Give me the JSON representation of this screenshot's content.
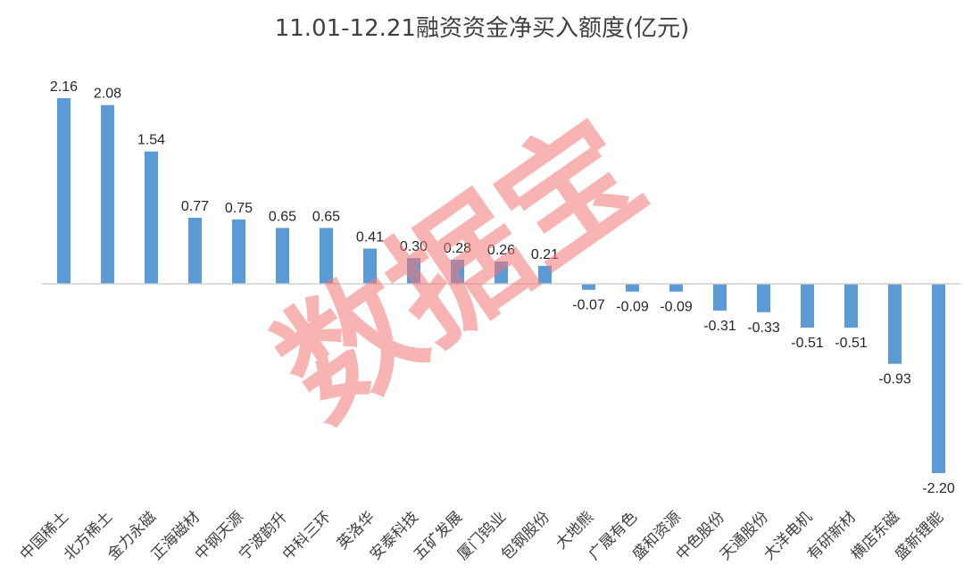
{
  "chart_data": {
    "type": "bar",
    "title": "11.01-12.21融资资金净买入额度(亿元)",
    "categories": [
      "中国稀土",
      "北方稀土",
      "金力永磁",
      "正海磁材",
      "中钢天源",
      "宁波韵升",
      "中科三环",
      "英洛华",
      "安泰科技",
      "五矿发展",
      "厦门钨业",
      "包钢股份",
      "大地熊",
      "广晟有色",
      "盛和资源",
      "中色股份",
      "天通股份",
      "大洋电机",
      "有研新材",
      "横店东磁",
      "盛新锂能"
    ],
    "values": [
      2.16,
      2.08,
      1.54,
      0.77,
      0.75,
      0.65,
      0.65,
      0.41,
      0.3,
      0.28,
      0.26,
      0.21,
      -0.07,
      -0.09,
      -0.09,
      -0.31,
      -0.33,
      -0.51,
      -0.51,
      -0.93,
      -2.2
    ],
    "value_labels": [
      "2.16",
      "2.08",
      "1.54",
      "0.77",
      "0.75",
      "0.65",
      "0.65",
      "0.41",
      "0.30",
      "0.28",
      "0.26",
      "0.21",
      "-0.07",
      "-0.09",
      "-0.09",
      "-0.31",
      "-0.33",
      "-0.51",
      "-0.51",
      "-0.93",
      "-2.20"
    ],
    "ylim": [
      -2.2,
      2.16
    ],
    "grid": false,
    "legend": "none",
    "bar_color": "#5b9bd5",
    "watermark": "数据宝",
    "watermark_color": "#f27474"
  }
}
